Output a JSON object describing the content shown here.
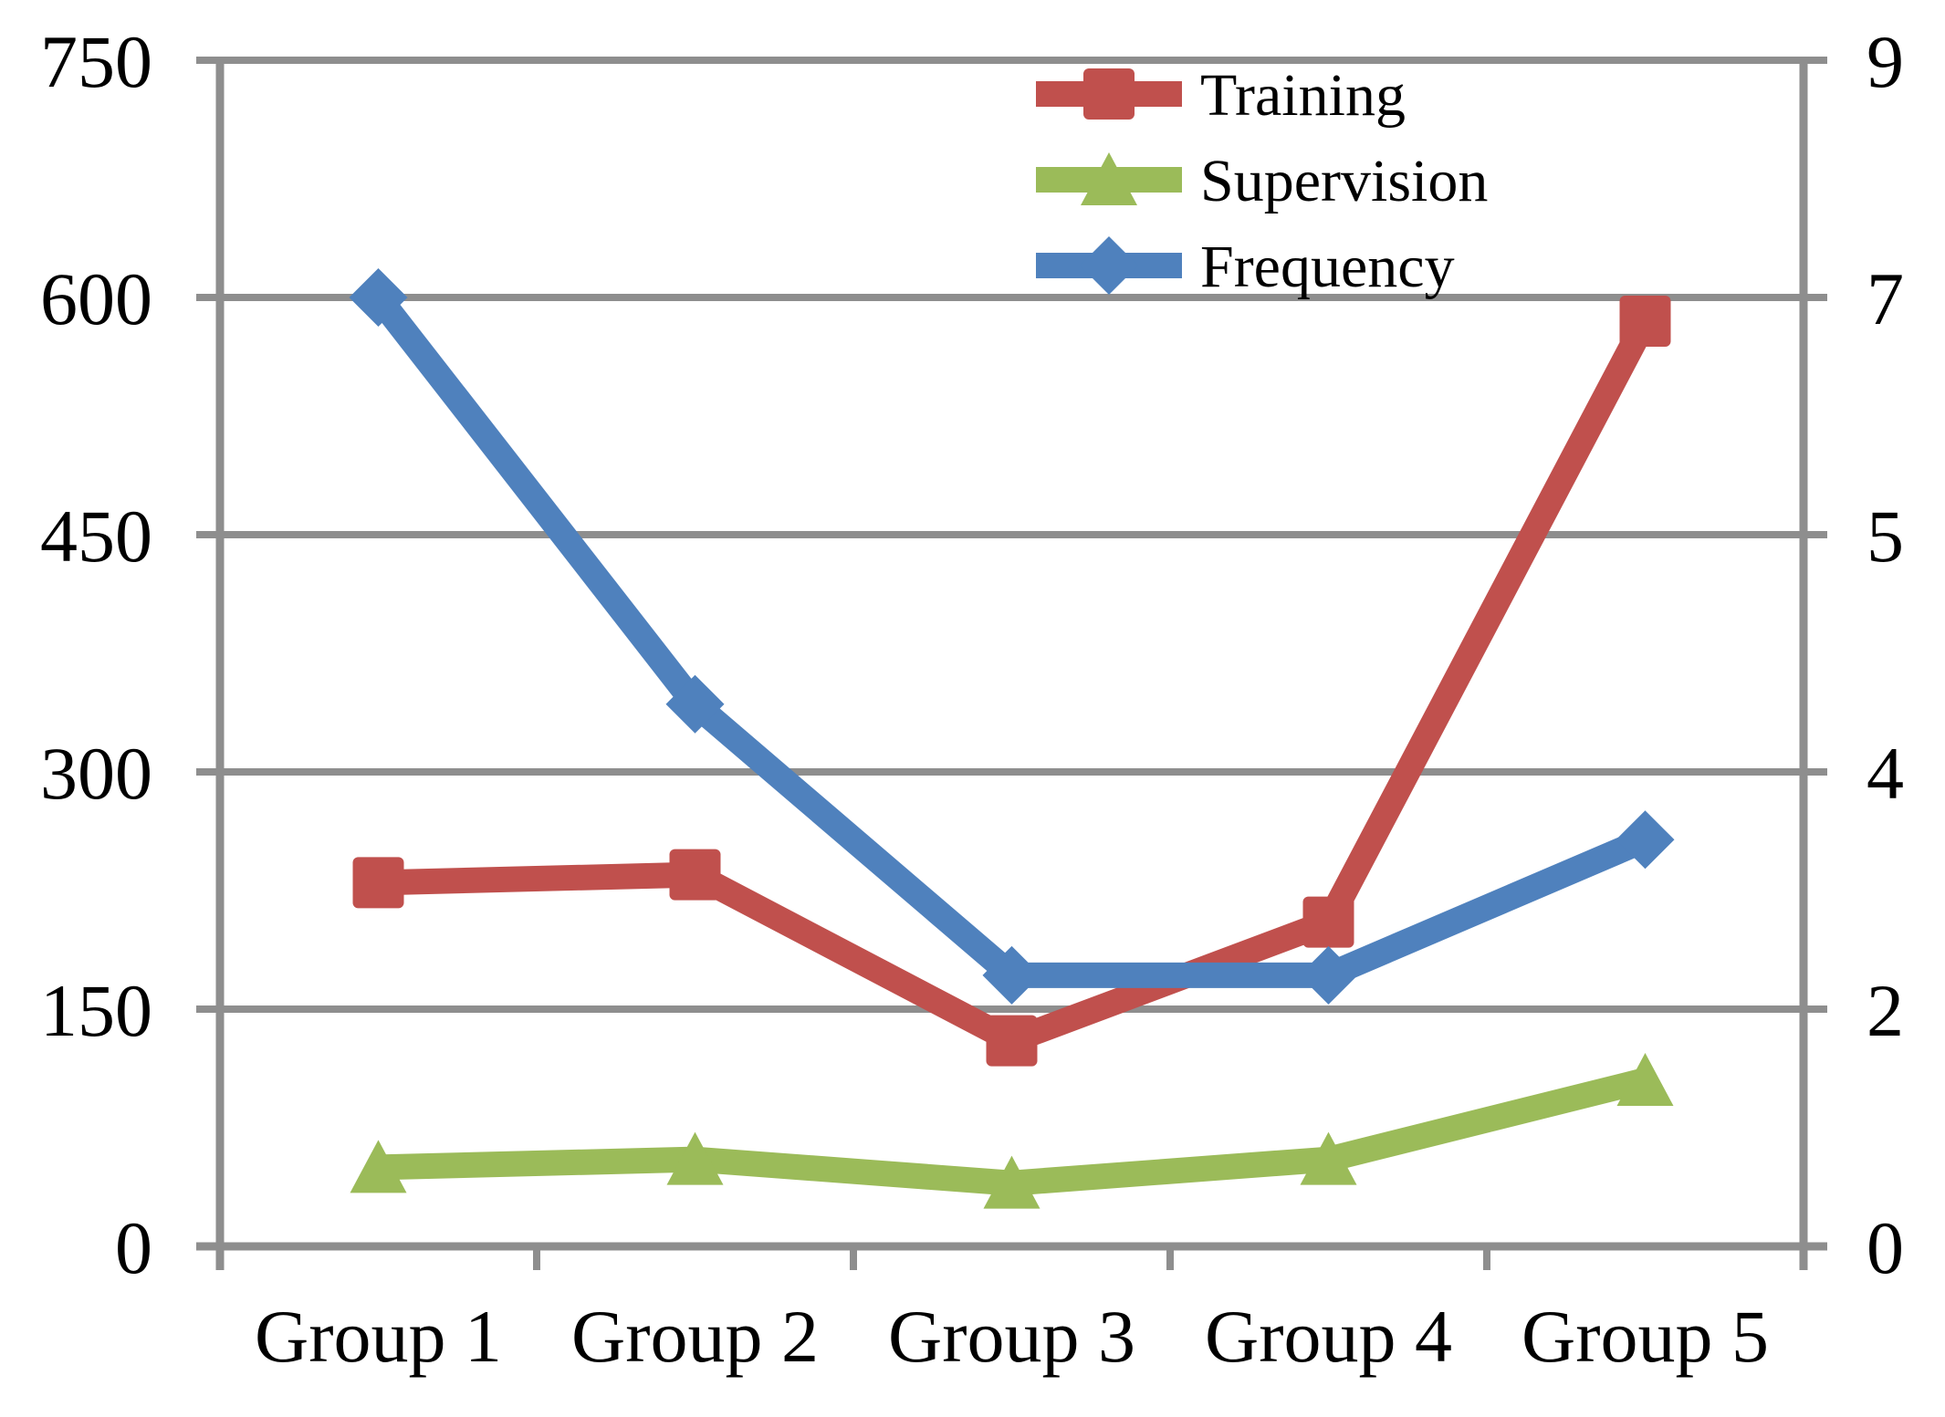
{
  "chart_data": {
    "type": "line",
    "categories": [
      "Group 1",
      "Group 2",
      "Group 3",
      "Group 4",
      "Group 5"
    ],
    "series": [
      {
        "name": "Training",
        "axis": "left",
        "marker": "square",
        "color": "#C0504D",
        "values": [
          230,
          235,
          130,
          205,
          585
        ]
      },
      {
        "name": "Supervision",
        "axis": "left",
        "marker": "triangle",
        "color": "#9BBB59",
        "values": [
          50,
          55,
          40,
          55,
          105
        ]
      },
      {
        "name": "Frequency",
        "axis": "right",
        "marker": "diamond",
        "color": "#4F81BD",
        "values": [
          7,
          4,
          2,
          2,
          3
        ]
      }
    ],
    "left_axis": {
      "tick_labels": [
        "0",
        "150",
        "300",
        "450",
        "600",
        "750"
      ],
      "range": [
        0,
        750
      ]
    },
    "right_axis": {
      "tick_labels": [
        "0",
        "2",
        "4",
        "5",
        "7",
        "9"
      ],
      "range": [
        0,
        8.75
      ]
    },
    "legend": {
      "position": "top-right",
      "entries": [
        "Training",
        "Supervision",
        "Frequency"
      ]
    },
    "grid": true,
    "background": "#FFFFFF",
    "gridline_color": "#8E8E8E",
    "text_color": "#000000"
  }
}
